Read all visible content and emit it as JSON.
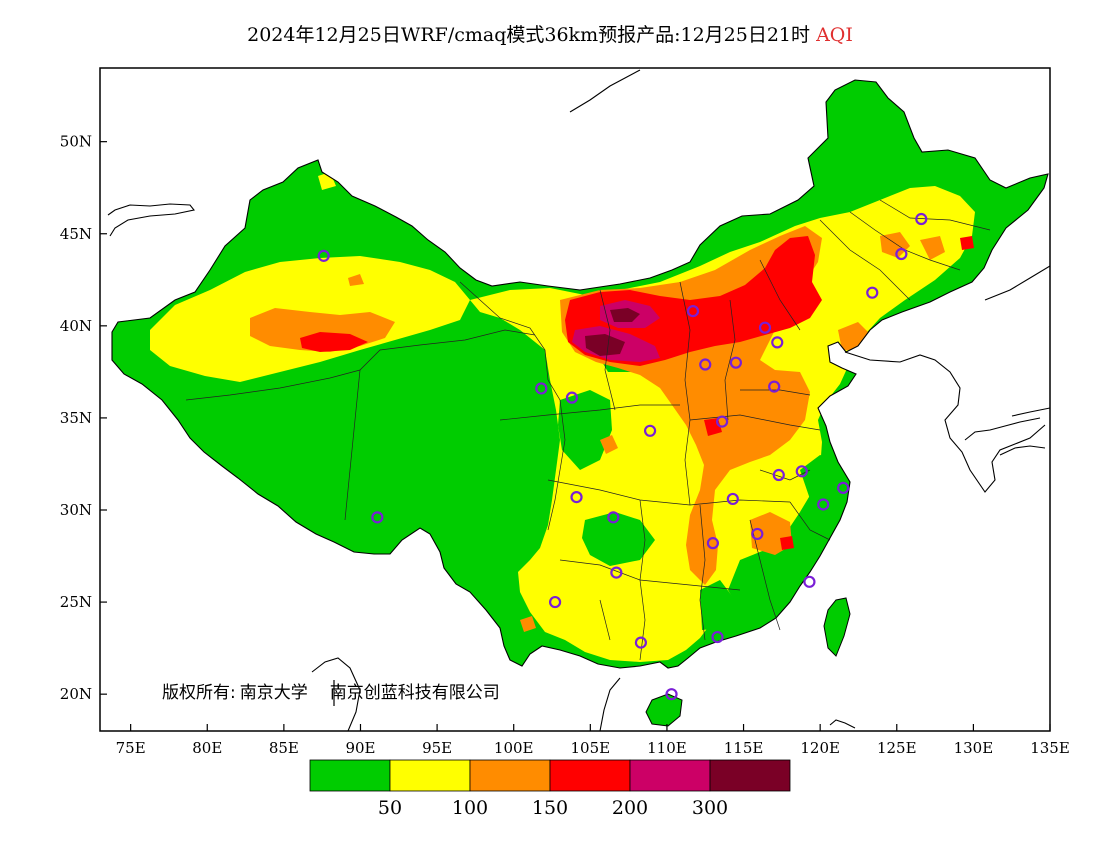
{
  "title": {
    "main": "2024年12月25日WRF/cmaq模式36km预报产品:12月25日21时",
    "variable": "AQI",
    "variable_color": "#e03030"
  },
  "axes": {
    "lon_labels": [
      "75E",
      "80E",
      "85E",
      "90E",
      "95E",
      "100E",
      "105E",
      "110E",
      "115E",
      "120E",
      "125E",
      "130E",
      "135E"
    ],
    "lat_labels": [
      "50N",
      "45N",
      "40N",
      "35N",
      "30N",
      "25N",
      "20N"
    ],
    "lon_range": [
      73,
      135
    ],
    "lat_range": [
      18,
      54
    ]
  },
  "legend": {
    "colors": [
      "#00cc00",
      "#ffff00",
      "#ff8c00",
      "#ff0000",
      "#cc0066",
      "#7a0026"
    ],
    "labels": [
      "50",
      "100",
      "150",
      "200",
      "300"
    ]
  },
  "credit": {
    "owner_label": "版权所有:",
    "org1": "南京大学",
    "org2": "南京创蓝科技有限公司"
  },
  "stations": {
    "color": "#7a1fd6",
    "items": [
      {
        "lon": 87.6,
        "lat": 43.8
      },
      {
        "lon": 91.1,
        "lat": 29.6
      },
      {
        "lon": 101.8,
        "lat": 36.6
      },
      {
        "lon": 103.8,
        "lat": 36.1
      },
      {
        "lon": 104.1,
        "lat": 30.7
      },
      {
        "lon": 106.5,
        "lat": 29.6
      },
      {
        "lon": 102.7,
        "lat": 25.0
      },
      {
        "lon": 106.7,
        "lat": 26.6
      },
      {
        "lon": 108.3,
        "lat": 22.8
      },
      {
        "lon": 110.3,
        "lat": 20.0
      },
      {
        "lon": 108.9,
        "lat": 34.3
      },
      {
        "lon": 111.7,
        "lat": 40.8
      },
      {
        "lon": 112.5,
        "lat": 37.9
      },
      {
        "lon": 114.5,
        "lat": 38.0
      },
      {
        "lon": 113.6,
        "lat": 34.8
      },
      {
        "lon": 114.3,
        "lat": 30.6
      },
      {
        "lon": 113.0,
        "lat": 28.2
      },
      {
        "lon": 113.3,
        "lat": 23.1
      },
      {
        "lon": 115.9,
        "lat": 28.7
      },
      {
        "lon": 117.3,
        "lat": 31.9
      },
      {
        "lon": 117.0,
        "lat": 36.7
      },
      {
        "lon": 116.4,
        "lat": 39.9
      },
      {
        "lon": 117.2,
        "lat": 39.1
      },
      {
        "lon": 118.8,
        "lat": 32.1
      },
      {
        "lon": 120.2,
        "lat": 30.3
      },
      {
        "lon": 121.5,
        "lat": 31.2
      },
      {
        "lon": 119.3,
        "lat": 26.1
      },
      {
        "lon": 123.4,
        "lat": 41.8
      },
      {
        "lon": 125.3,
        "lat": 43.9
      },
      {
        "lon": 126.6,
        "lat": 45.8
      }
    ]
  }
}
